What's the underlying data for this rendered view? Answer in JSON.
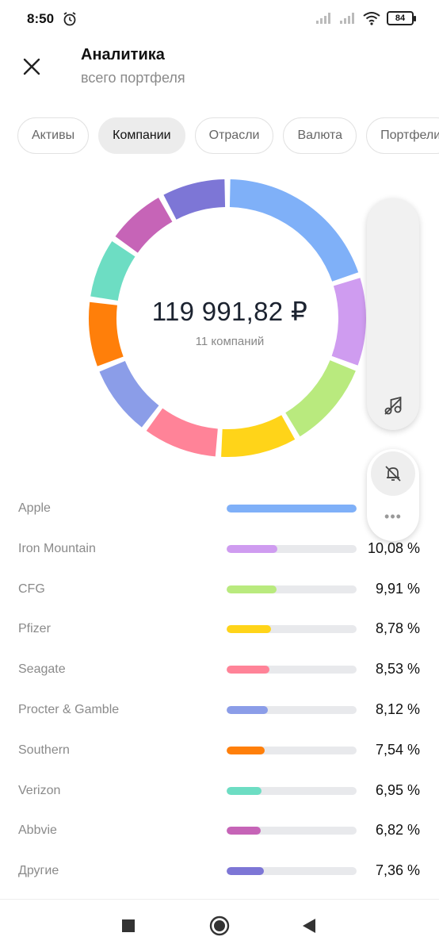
{
  "status_bar": {
    "time": "8:50",
    "battery": "84"
  },
  "header": {
    "title": "Аналитика",
    "subtitle": "всего портфеля"
  },
  "tabs": [
    {
      "label": "Активы",
      "active": false
    },
    {
      "label": "Компании",
      "active": true
    },
    {
      "label": "Отрасли",
      "active": false
    },
    {
      "label": "Валюта",
      "active": false
    },
    {
      "label": "Портфели",
      "active": false
    }
  ],
  "summary": {
    "amount": "119 991,82 ₽",
    "count_label": "11 компаний"
  },
  "chart_data": {
    "type": "pie",
    "variant": "donut",
    "categories": [
      "Apple",
      "Iron Mountain",
      "CFG",
      "Pfizer",
      "Seagate",
      "Procter & Gamble",
      "Southern",
      "Verizon",
      "Abbvie",
      "Другие"
    ],
    "values": [
      18.5,
      10.08,
      9.91,
      8.78,
      8.53,
      8.12,
      7.54,
      6.95,
      6.82,
      7.36
    ],
    "colors": [
      "#7fb0f8",
      "#cf9cf0",
      "#b9ea7e",
      "#ffd419",
      "#ff8398",
      "#8b9de8",
      "#ff7f0a",
      "#6dddc3",
      "#c664b7",
      "#7d76d6"
    ]
  },
  "holdings": [
    {
      "name": "Apple",
      "percent": "",
      "fraction": 1.0,
      "color": "#7fb0f8"
    },
    {
      "name": "Iron Mountain",
      "percent": "10,08 %",
      "fraction": 0.39,
      "color": "#cf9cf0"
    },
    {
      "name": "CFG",
      "percent": "9,91 %",
      "fraction": 0.385,
      "color": "#b9ea7e"
    },
    {
      "name": "Pfizer",
      "percent": "8,78 %",
      "fraction": 0.34,
      "color": "#ffd419"
    },
    {
      "name": "Seagate",
      "percent": "8,53 %",
      "fraction": 0.33,
      "color": "#ff8398"
    },
    {
      "name": "Procter & Gamble",
      "percent": "8,12 %",
      "fraction": 0.315,
      "color": "#8b9de8"
    },
    {
      "name": "Southern",
      "percent": "7,54 %",
      "fraction": 0.29,
      "color": "#ff7f0a"
    },
    {
      "name": "Verizon",
      "percent": "6,95 %",
      "fraction": 0.27,
      "color": "#6dddc3"
    },
    {
      "name": "Abbvie",
      "percent": "6,82 %",
      "fraction": 0.265,
      "color": "#c664b7"
    },
    {
      "name": "Другие",
      "percent": "7,36 %",
      "fraction": 0.285,
      "color": "#7d76d6"
    }
  ]
}
